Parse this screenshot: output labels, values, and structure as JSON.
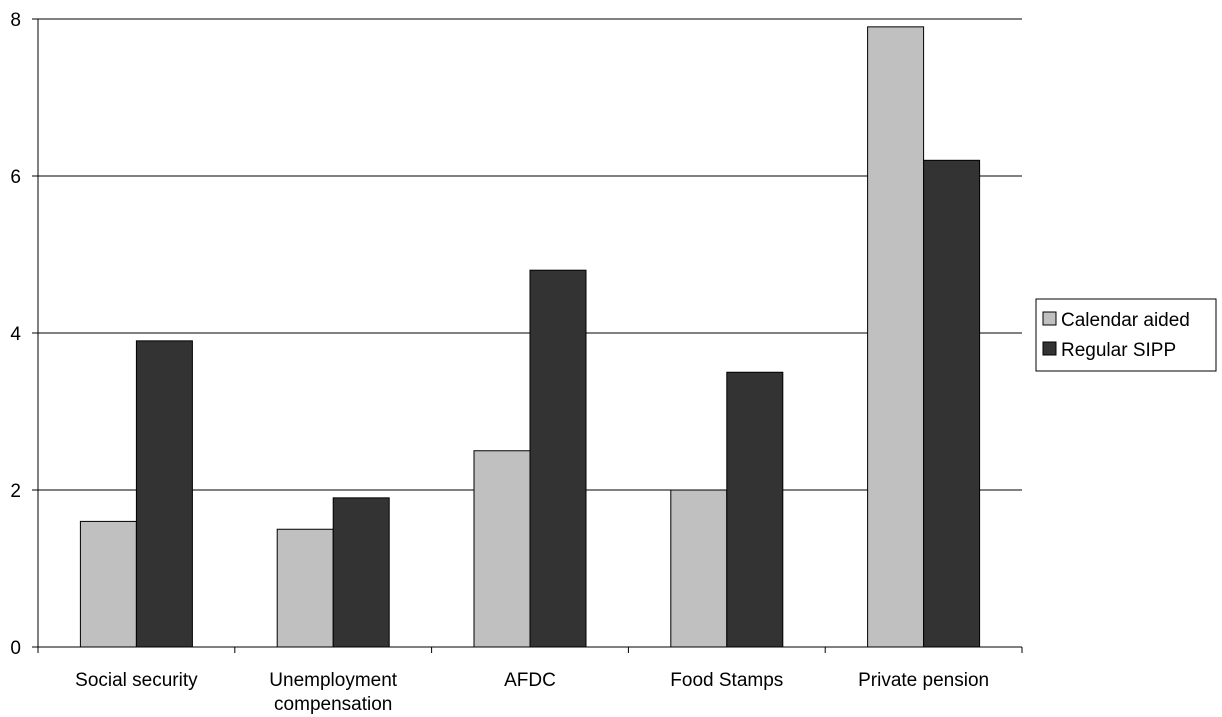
{
  "chart_data": {
    "type": "bar",
    "title": "",
    "xlabel": "",
    "ylabel": "",
    "categories": [
      [
        "Social security"
      ],
      [
        "Unemployment",
        "compensation"
      ],
      [
        "AFDC"
      ],
      [
        "Food Stamps"
      ],
      [
        "Private pension"
      ]
    ],
    "series": [
      {
        "name": "Calendar aided",
        "color": "#c0c0c0",
        "values": [
          1.6,
          1.5,
          2.5,
          2.0,
          7.9
        ]
      },
      {
        "name": "Regular SIPP",
        "color": "#333333",
        "values": [
          3.9,
          1.9,
          4.8,
          3.5,
          6.2
        ]
      }
    ],
    "ylim": [
      0,
      8
    ],
    "yticks": [
      0,
      2,
      4,
      6,
      8
    ],
    "grid": true,
    "legend_position": "right"
  }
}
